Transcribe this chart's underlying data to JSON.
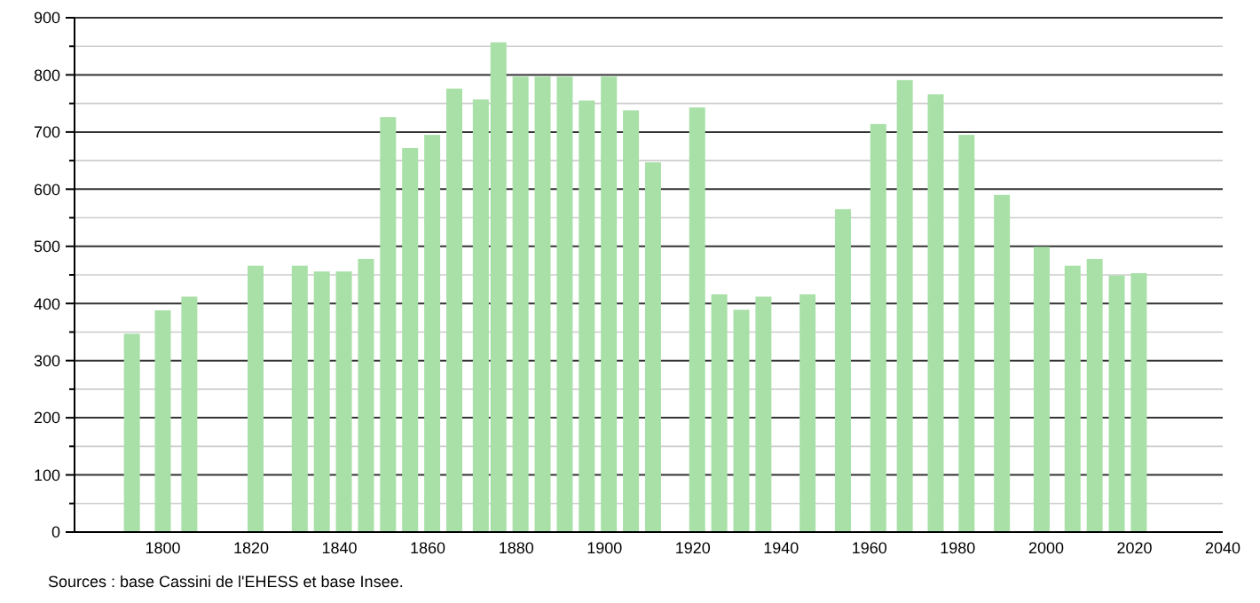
{
  "chart_data": {
    "type": "bar",
    "x": [
      1793,
      1800,
      1806,
      1821,
      1831,
      1836,
      1841,
      1846,
      1851,
      1856,
      1861,
      1866,
      1872,
      1876,
      1881,
      1886,
      1891,
      1896,
      1901,
      1906,
      1911,
      1921,
      1926,
      1931,
      1936,
      1946,
      1954,
      1962,
      1968,
      1975,
      1982,
      1990,
      1999,
      2006,
      2011,
      2016,
      2021
    ],
    "values": [
      347,
      388,
      412,
      466,
      466,
      456,
      456,
      478,
      726,
      672,
      695,
      776,
      757,
      857,
      797,
      797,
      797,
      755,
      797,
      738,
      647,
      743,
      416,
      389,
      412,
      416,
      565,
      714,
      791,
      766,
      695,
      590,
      499,
      466,
      478,
      449,
      453
    ],
    "color": "#a8e0a8",
    "xlim": [
      1778,
      2040
    ],
    "xticks": [
      1800,
      1820,
      1840,
      1860,
      1880,
      1900,
      1920,
      1940,
      1960,
      1980,
      2000,
      2020,
      2040
    ],
    "ylim": [
      0,
      900
    ],
    "yticks": [
      0,
      {
        "value": 50,
        "label": null
      },
      100,
      {
        "value": 150,
        "label": null
      },
      200,
      {
        "value": 250,
        "label": null
      },
      300,
      {
        "value": 350,
        "label": null
      },
      400,
      {
        "value": 450,
        "label": null
      },
      500,
      {
        "value": 550,
        "label": null
      },
      600,
      {
        "value": 650,
        "label": null
      },
      700,
      {
        "value": 750,
        "label": null
      },
      800,
      {
        "value": 850,
        "label": null
      },
      900
    ],
    "grid": "y",
    "annotations": [
      "Sources : base Cassini de l'EHESS et base Insee."
    ]
  }
}
